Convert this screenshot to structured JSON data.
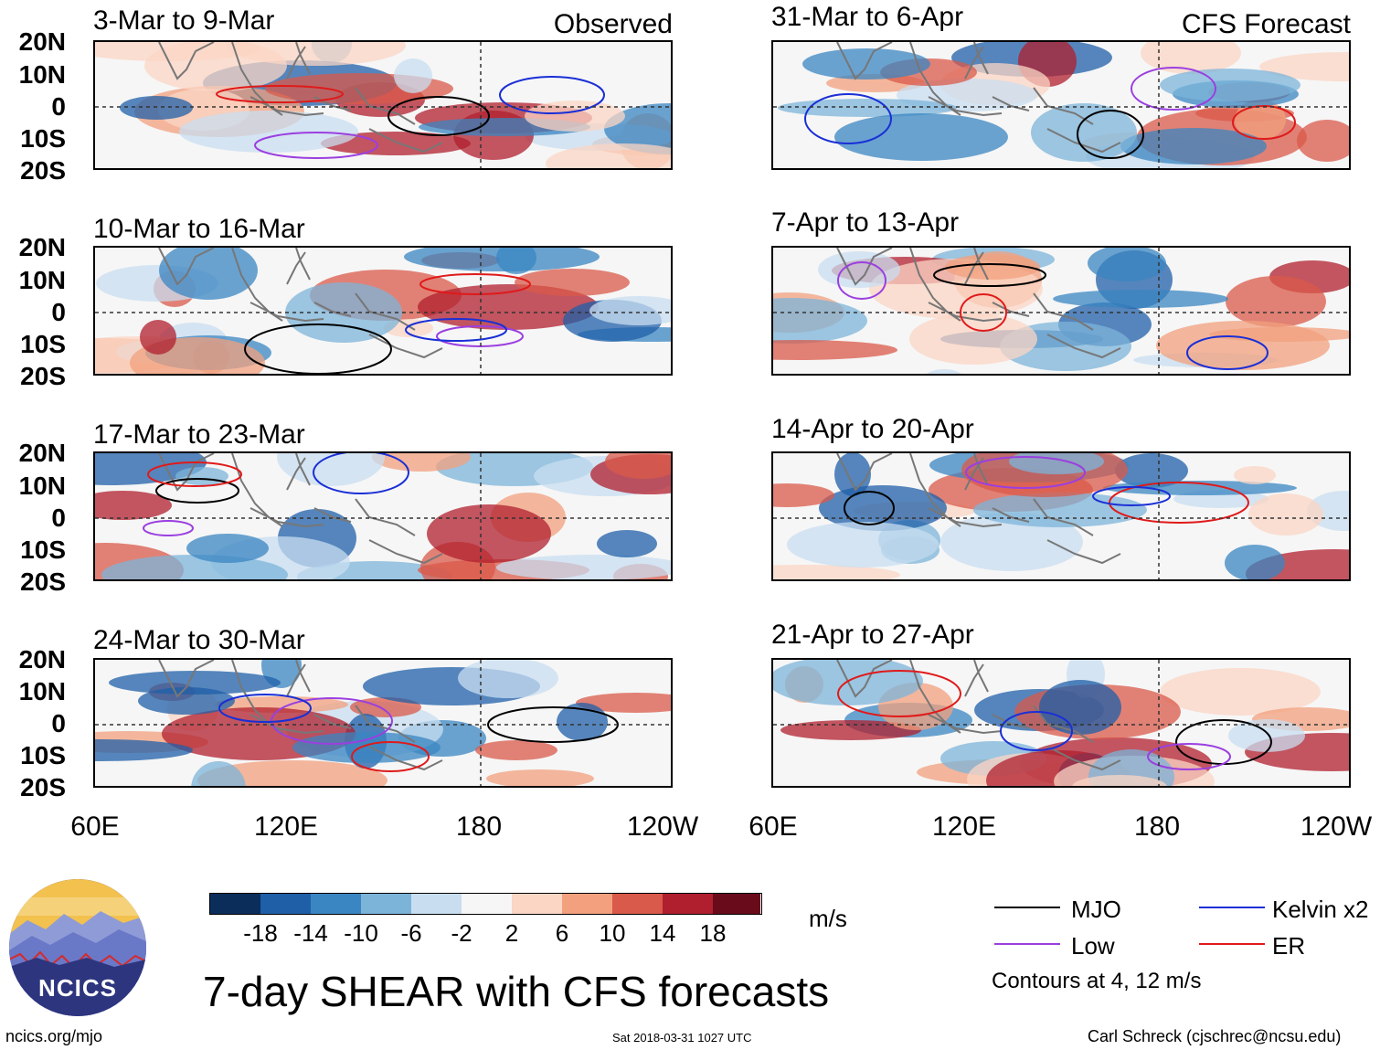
{
  "observed_label": "Observed",
  "forecast_label": "CFS Forecast",
  "panels_left": [
    {
      "title": "3-Mar to 9-Mar"
    },
    {
      "title": "10-Mar to 16-Mar"
    },
    {
      "title": "17-Mar to 23-Mar"
    },
    {
      "title": "24-Mar to 30-Mar"
    }
  ],
  "panels_right": [
    {
      "title": "31-Mar to 6-Apr"
    },
    {
      "title": "7-Apr to 13-Apr"
    },
    {
      "title": "14-Apr to 20-Apr"
    },
    {
      "title": "21-Apr to 27-Apr"
    }
  ],
  "lat_labels": [
    "20N",
    "10N",
    "0",
    "10S",
    "20S"
  ],
  "lon_labels": [
    "60E",
    "120E",
    "180",
    "120W"
  ],
  "colorbar": {
    "ticks": [
      "-18",
      "-14",
      "-10",
      "-6",
      "-2",
      "2",
      "6",
      "10",
      "14",
      "18"
    ],
    "colors": [
      "#0b2d5a",
      "#1f5fa8",
      "#3a86c2",
      "#7cb4d9",
      "#c8def0",
      "#f6f6f6",
      "#fbd6c4",
      "#f2a07e",
      "#d9594a",
      "#b01f2e",
      "#6a0b1c"
    ],
    "units": "m/s"
  },
  "legend": {
    "items": [
      {
        "label": "MJO",
        "color": "#000000"
      },
      {
        "label": "Kelvin x2",
        "color": "#1a2fd6"
      },
      {
        "label": "Low",
        "color": "#9b3fe0"
      },
      {
        "label": "ER",
        "color": "#e01a1a"
      }
    ],
    "contours_note": "Contours at 4, 12 m/s"
  },
  "logo_text": "NCICS",
  "main_title": "7-day SHEAR with CFS forecasts",
  "footer": {
    "url": "ncics.org/mjo",
    "timestamp": "Sat 2018-03-31 1027 UTC",
    "credit": "Carl Schreck (cjschrec@ncsu.edu)"
  }
}
